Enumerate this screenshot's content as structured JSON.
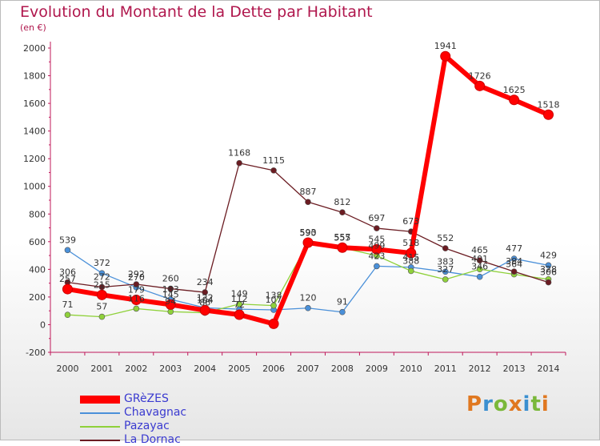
{
  "title": "Evolution du Montant de la Dette par Habitant",
  "unit": "(en €)",
  "logo": {
    "text": "Proxiti",
    "letters": [
      {
        "ch": "P",
        "color": "#e07820"
      },
      {
        "ch": "r",
        "color": "#3a8fd0"
      },
      {
        "ch": "o",
        "color": "#7ab83a"
      },
      {
        "ch": "x",
        "color": "#e07820"
      },
      {
        "ch": "i",
        "color": "#3a8fd0"
      },
      {
        "ch": "t",
        "color": "#7ab83a"
      },
      {
        "ch": "i",
        "color": "#e07820"
      }
    ]
  },
  "chart_data": {
    "type": "line",
    "title": "Evolution du Montant de la Dette par Habitant",
    "ylabel": "(en €)",
    "x": [
      "2000",
      "2001",
      "2002",
      "2003",
      "2004",
      "2005",
      "2006",
      "2007",
      "2008",
      "2009",
      "2010",
      "2011",
      "2012",
      "2013",
      "2014"
    ],
    "ylim": [
      -200,
      2000
    ],
    "yticks": [
      "-200",
      "0",
      "200",
      "400",
      "600",
      "800",
      "1000",
      "1200",
      "1400",
      "1600",
      "1800",
      "2000"
    ],
    "grid": false,
    "legend_position": "bottom-left",
    "series": [
      {
        "name": "Chavagnac",
        "color": "#4a90d9",
        "width": 1.3,
        "values": [
          539,
          372,
          270,
          183,
          122,
          112,
          107,
          120,
          91,
          423,
          415,
          383,
          346,
          477,
          429
        ],
        "labels": [
          "539",
          "372",
          "270",
          "183",
          "122",
          "112",
          "107",
          "120",
          "91",
          "423",
          "415",
          "383",
          "346",
          "477",
          "429"
        ]
      },
      {
        "name": "Pazayac",
        "color": "#8fd13a",
        "width": 1.3,
        "values": [
          71,
          57,
          116,
          94,
          86,
          149,
          138,
          590,
          555,
          499,
          388,
          327,
          401,
          364,
          328
        ],
        "labels": [
          "71",
          "57",
          "116",
          "94",
          "86",
          "149",
          "138",
          "590",
          "555",
          "499",
          "388",
          "327",
          "401",
          "364",
          "328"
        ]
      },
      {
        "name": "La Dornac",
        "color": "#6b1c22",
        "width": 1.3,
        "values": [
          306,
          272,
          292,
          260,
          234,
          1168,
          1115,
          887,
          812,
          697,
          673,
          552,
          465,
          384,
          306
        ],
        "labels": [
          "306",
          "272",
          "292",
          "260",
          "234",
          "1168",
          "1115",
          "887",
          "812",
          "697",
          "673",
          "552",
          "465",
          "384",
          "306"
        ]
      },
      {
        "name": "GRèZES",
        "color": "#ff0000",
        "width": 6,
        "values": [
          257,
          215,
          179,
          145,
          104,
          72,
          6,
          593,
          557,
          545,
          518,
          1941,
          1726,
          1625,
          1518
        ],
        "labels": [
          "257",
          "215",
          "179",
          "145",
          "104",
          "72",
          "",
          "593",
          "557",
          "545",
          "518",
          "1941",
          "1726",
          "1625",
          "1518"
        ]
      }
    ]
  }
}
